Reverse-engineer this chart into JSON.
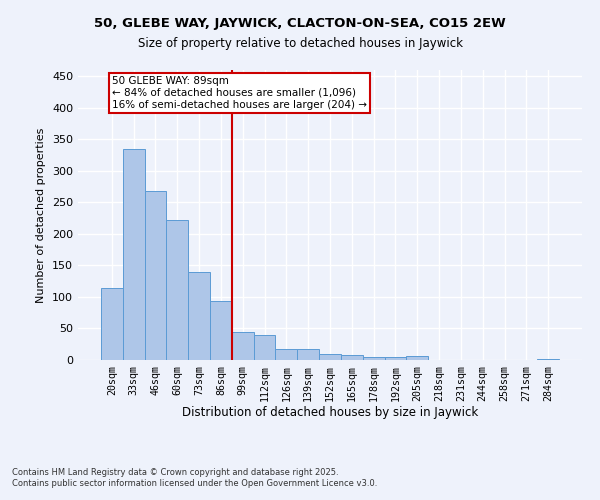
{
  "title1": "50, GLEBE WAY, JAYWICK, CLACTON-ON-SEA, CO15 2EW",
  "title2": "Size of property relative to detached houses in Jaywick",
  "xlabel": "Distribution of detached houses by size in Jaywick",
  "ylabel": "Number of detached properties",
  "categories": [
    "20sqm",
    "33sqm",
    "46sqm",
    "60sqm",
    "73sqm",
    "86sqm",
    "99sqm",
    "112sqm",
    "126sqm",
    "139sqm",
    "152sqm",
    "165sqm",
    "178sqm",
    "192sqm",
    "205sqm",
    "218sqm",
    "231sqm",
    "244sqm",
    "258sqm",
    "271sqm",
    "284sqm"
  ],
  "values": [
    115,
    335,
    268,
    222,
    140,
    93,
    45,
    40,
    18,
    18,
    10,
    8,
    5,
    5,
    6,
    0,
    0,
    0,
    0,
    0,
    1
  ],
  "bar_color": "#aec6e8",
  "bar_edge_color": "#5b9bd5",
  "background_color": "#eef2fb",
  "grid_color": "#ffffff",
  "vline_x": 5.5,
  "vline_color": "#cc0000",
  "annotation_line1": "50 GLEBE WAY: 89sqm",
  "annotation_line2": "← 84% of detached houses are smaller (1,096)",
  "annotation_line3": "16% of semi-detached houses are larger (204) →",
  "ylim": [
    0,
    460
  ],
  "yticks": [
    0,
    50,
    100,
    150,
    200,
    250,
    300,
    350,
    400,
    450
  ],
  "footer1": "Contains HM Land Registry data © Crown copyright and database right 2025.",
  "footer2": "Contains public sector information licensed under the Open Government Licence v3.0."
}
